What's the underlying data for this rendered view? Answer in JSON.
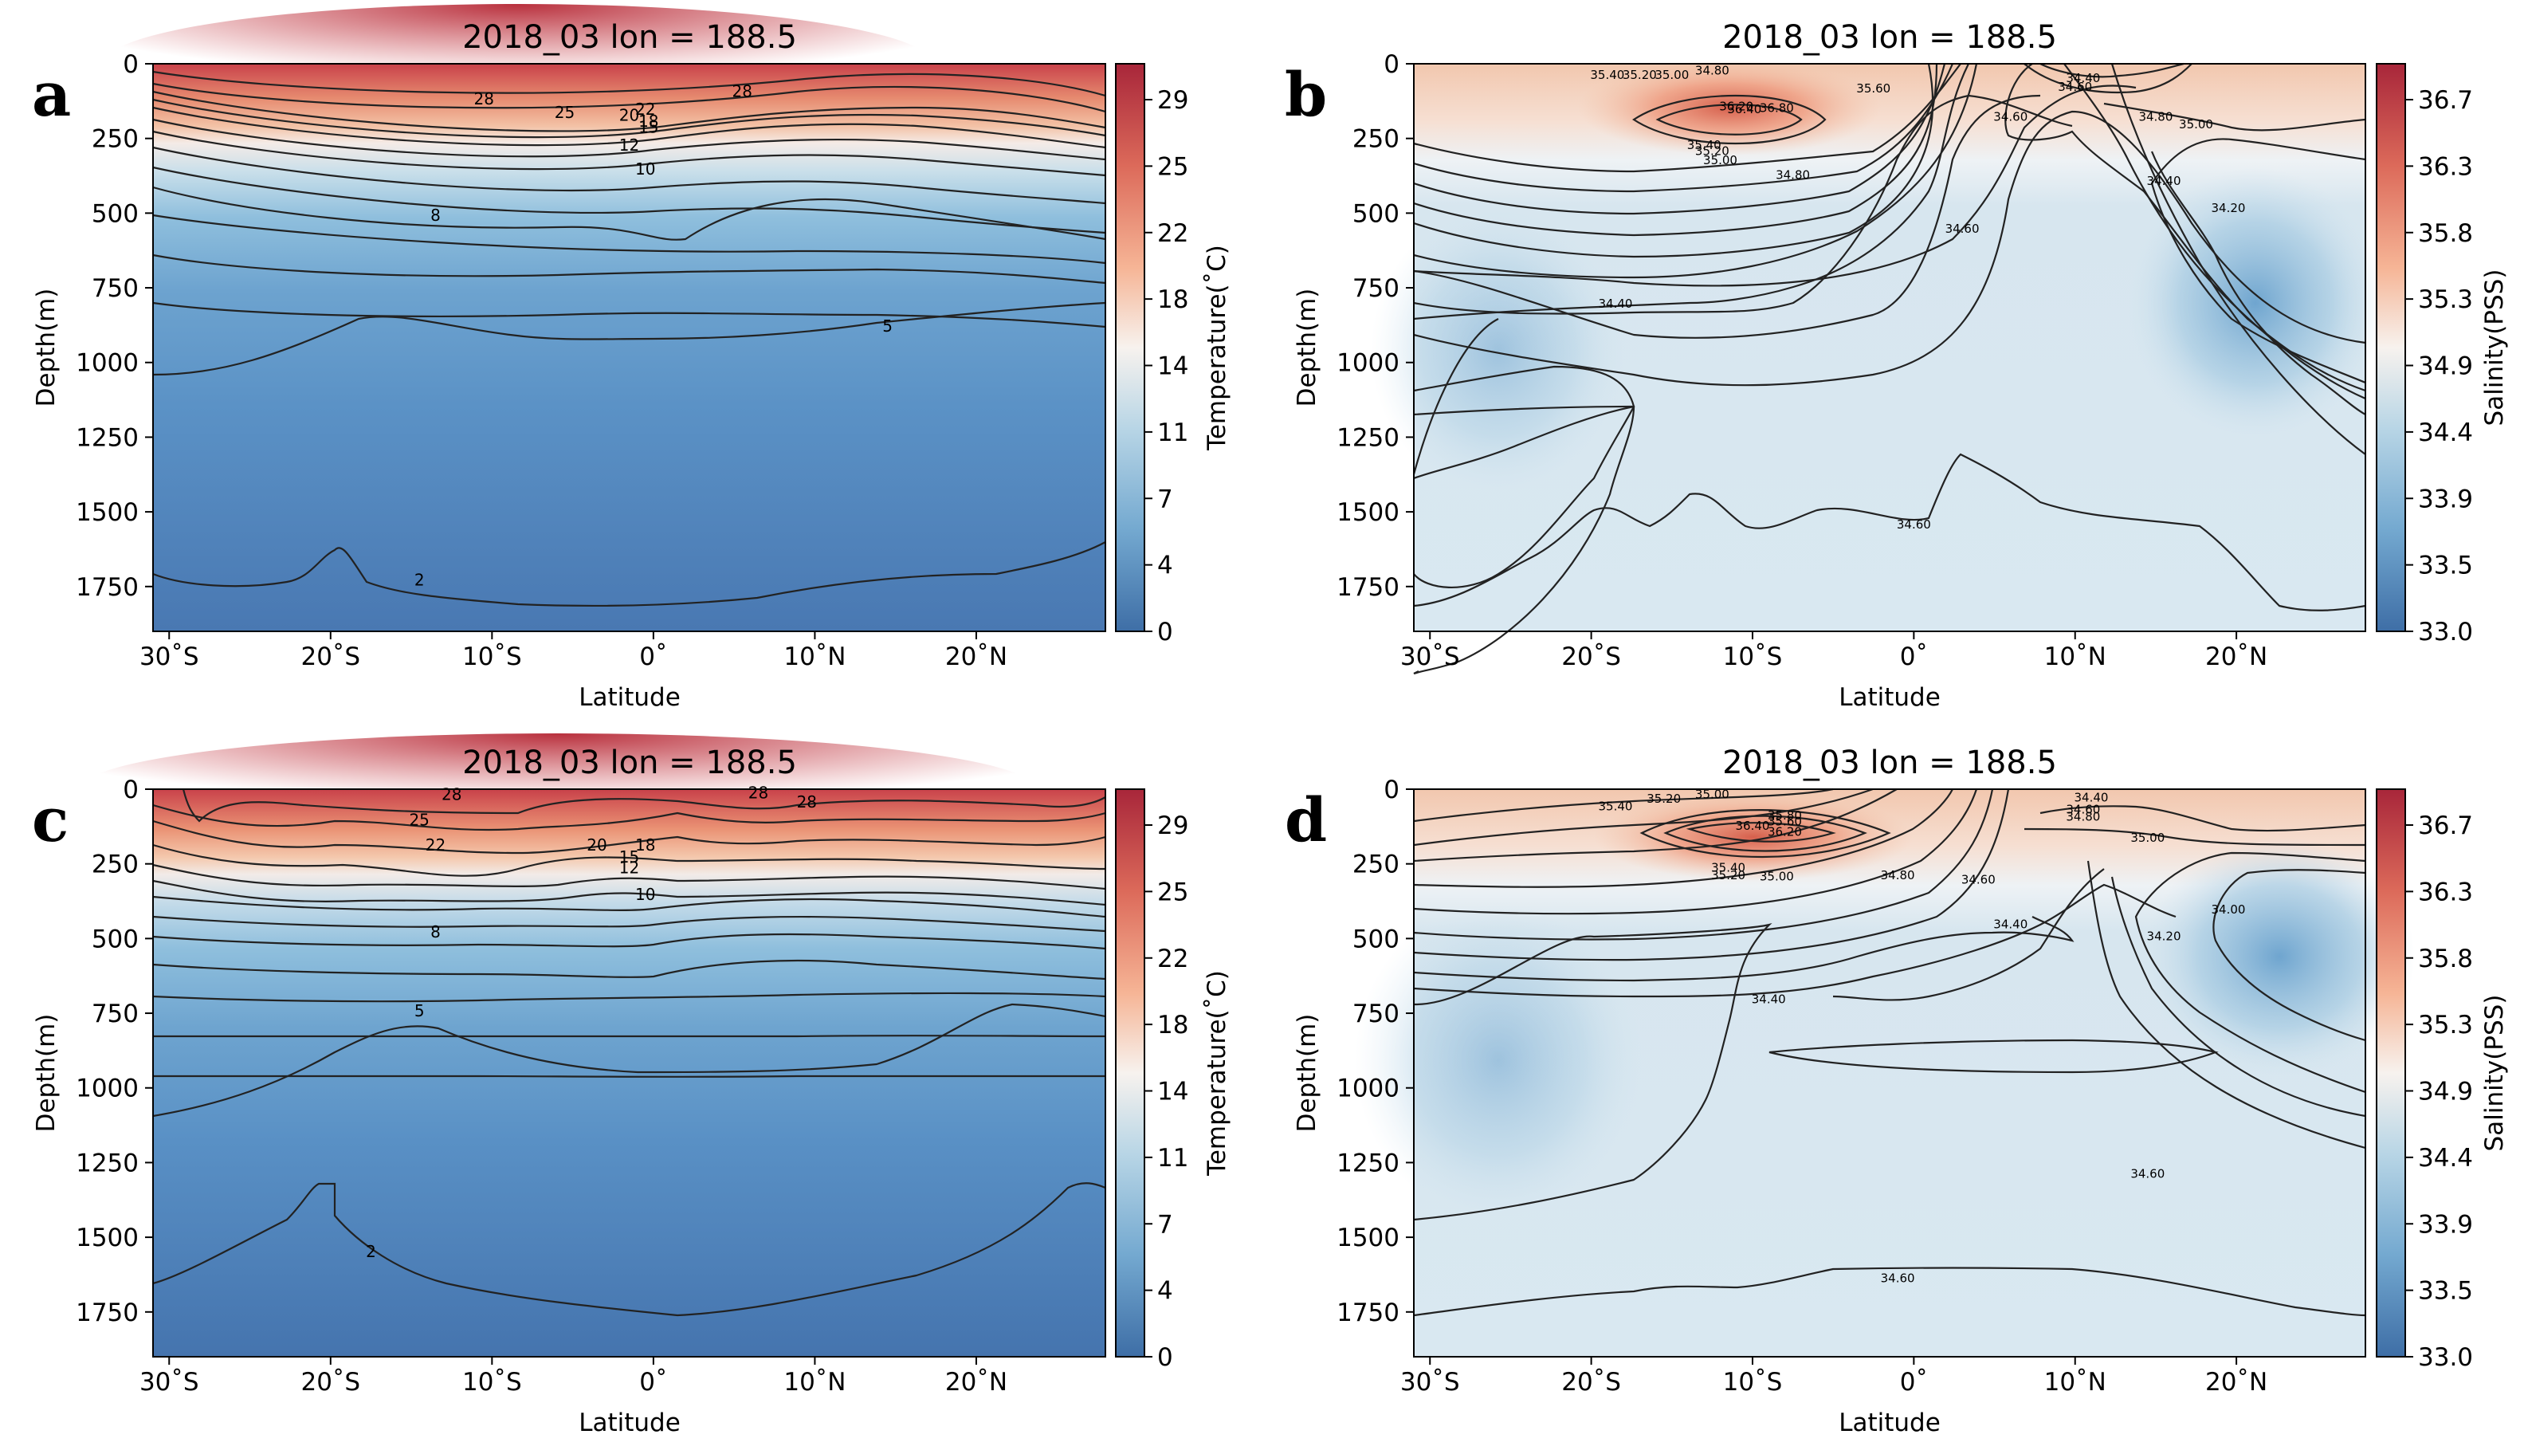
{
  "figure": {
    "panels": [
      "a",
      "b",
      "c",
      "d"
    ]
  },
  "colors": {
    "warm_max": "#b2182b",
    "warm": "#ef8a62",
    "neutral": "#f7f7f7",
    "cool": "#67a9cf",
    "cool_max": "#3d6ea8",
    "contour": "#222222"
  },
  "chart_data": [
    {
      "panel": "a",
      "type": "contour",
      "title": "2018_03 lon = 188.5",
      "xlabel": "Latitude",
      "ylabel": "Depth(m)",
      "colorbar_label": "Temperature(˚C)",
      "x_ticks": [
        "30˚S",
        "20˚S",
        "10˚S",
        "0˚",
        "10˚N",
        "20˚N"
      ],
      "y_ticks": [
        "0",
        "250",
        "500",
        "750",
        "1000",
        "1250",
        "1500",
        "1750"
      ],
      "colorbar_ticks": [
        "29",
        "25",
        "22",
        "18",
        "14",
        "11",
        "7",
        "4",
        "0"
      ],
      "xlim": [
        -31,
        28
      ],
      "ylim": [
        1900,
        0
      ],
      "contour_labels": [
        {
          "text": "28",
          "lat": -10.5,
          "depth": 120
        },
        {
          "text": "28",
          "lat": 5.5,
          "depth": 95
        },
        {
          "text": "25",
          "lat": -5.5,
          "depth": 165
        },
        {
          "text": "20",
          "lat": -1.5,
          "depth": 175
        },
        {
          "text": "22",
          "lat": -0.5,
          "depth": 155
        },
        {
          "text": "18",
          "lat": -0.3,
          "depth": 195
        },
        {
          "text": "15",
          "lat": -0.3,
          "depth": 215
        },
        {
          "text": "12",
          "lat": -1.5,
          "depth": 275
        },
        {
          "text": "10",
          "lat": -0.5,
          "depth": 355
        },
        {
          "text": "8",
          "lat": -13.5,
          "depth": 510
        },
        {
          "text": "5",
          "lat": 14.5,
          "depth": 880
        },
        {
          "text": "2",
          "lat": -14.5,
          "depth": 1730
        }
      ]
    },
    {
      "panel": "b",
      "type": "contour",
      "title": "2018_03 lon = 188.5",
      "xlabel": "Latitude",
      "ylabel": "Depth(m)",
      "colorbar_label": "Salinity(PSS)",
      "x_ticks": [
        "30˚S",
        "20˚S",
        "10˚S",
        "0˚",
        "10˚N",
        "20˚N"
      ],
      "y_ticks": [
        "0",
        "250",
        "500",
        "750",
        "1000",
        "1250",
        "1500",
        "1750"
      ],
      "colorbar_ticks": [
        "36.7",
        "36.3",
        "35.8",
        "35.3",
        "34.9",
        "34.4",
        "33.9",
        "33.5",
        "33.0"
      ],
      "xlim": [
        -31,
        28
      ],
      "ylim": [
        1900,
        0
      ],
      "contour_labels": [
        {
          "text": "35.40",
          "lat": -19,
          "depth": 35
        },
        {
          "text": "35.20",
          "lat": -17,
          "depth": 35
        },
        {
          "text": "35.00",
          "lat": -15,
          "depth": 35
        },
        {
          "text": "34.80",
          "lat": -12.5,
          "depth": 20
        },
        {
          "text": "35.60",
          "lat": -2.5,
          "depth": 80
        },
        {
          "text": "36.20",
          "lat": -11,
          "depth": 140
        },
        {
          "text": "36.40",
          "lat": -10.5,
          "depth": 150
        },
        {
          "text": "36.80",
          "lat": -8.5,
          "depth": 145
        },
        {
          "text": "35.40",
          "lat": -13,
          "depth": 270
        },
        {
          "text": "35.20",
          "lat": -12.5,
          "depth": 290
        },
        {
          "text": "35.00",
          "lat": -12,
          "depth": 320
        },
        {
          "text": "34.80",
          "lat": -7.5,
          "depth": 370
        },
        {
          "text": "34.40",
          "lat": 10.5,
          "depth": 45
        },
        {
          "text": "34.60",
          "lat": 10,
          "depth": 75
        },
        {
          "text": "34.60",
          "lat": 6,
          "depth": 175
        },
        {
          "text": "34.80",
          "lat": 15,
          "depth": 175
        },
        {
          "text": "35.00",
          "lat": 17.5,
          "depth": 200
        },
        {
          "text": "34.40",
          "lat": 15.5,
          "depth": 390
        },
        {
          "text": "34.20",
          "lat": 19.5,
          "depth": 480
        },
        {
          "text": "34.60",
          "lat": 3,
          "depth": 550
        },
        {
          "text": "34.40",
          "lat": -18.5,
          "depth": 800
        },
        {
          "text": "34.60",
          "lat": 0,
          "depth": 1540
        }
      ]
    },
    {
      "panel": "c",
      "type": "contour",
      "title": "2018_03 lon = 188.5",
      "xlabel": "Latitude",
      "ylabel": "Depth(m)",
      "colorbar_label": "Temperature(˚C)",
      "x_ticks": [
        "30˚S",
        "20˚S",
        "10˚S",
        "0˚",
        "10˚N",
        "20˚N"
      ],
      "y_ticks": [
        "0",
        "250",
        "500",
        "750",
        "1000",
        "1250",
        "1500",
        "1750"
      ],
      "colorbar_ticks": [
        "29",
        "25",
        "22",
        "18",
        "14",
        "11",
        "7",
        "4",
        "0"
      ],
      "xlim": [
        -31,
        28
      ],
      "ylim": [
        1900,
        0
      ],
      "contour_labels": [
        {
          "text": "28",
          "lat": -12.5,
          "depth": 20
        },
        {
          "text": "28",
          "lat": 6.5,
          "depth": 15
        },
        {
          "text": "28",
          "lat": 9.5,
          "depth": 45
        },
        {
          "text": "25",
          "lat": -14.5,
          "depth": 105
        },
        {
          "text": "22",
          "lat": -13.5,
          "depth": 190
        },
        {
          "text": "20",
          "lat": -3.5,
          "depth": 190
        },
        {
          "text": "18",
          "lat": -0.5,
          "depth": 190
        },
        {
          "text": "15",
          "lat": -1.5,
          "depth": 230
        },
        {
          "text": "12",
          "lat": -1.5,
          "depth": 265
        },
        {
          "text": "10",
          "lat": -0.5,
          "depth": 355
        },
        {
          "text": "8",
          "lat": -13.5,
          "depth": 480
        },
        {
          "text": "5",
          "lat": -14.5,
          "depth": 745
        },
        {
          "text": "2",
          "lat": -17.5,
          "depth": 1550
        }
      ]
    },
    {
      "panel": "d",
      "type": "contour",
      "title": "2018_03 lon = 188.5",
      "xlabel": "Latitude",
      "ylabel": "Depth(m)",
      "colorbar_label": "Salinity(PSS)",
      "x_ticks": [
        "30˚S",
        "20˚S",
        "10˚S",
        "0˚",
        "10˚N",
        "20˚N"
      ],
      "y_ticks": [
        "0",
        "250",
        "500",
        "750",
        "1000",
        "1250",
        "1500",
        "1750"
      ],
      "colorbar_ticks": [
        "36.7",
        "36.3",
        "35.8",
        "35.3",
        "34.9",
        "34.4",
        "33.9",
        "33.5",
        "33.0"
      ],
      "xlim": [
        -31,
        28
      ],
      "ylim": [
        1900,
        0
      ],
      "contour_labels": [
        {
          "text": "35.40",
          "lat": -18.5,
          "depth": 55
        },
        {
          "text": "35.20",
          "lat": -15.5,
          "depth": 30
        },
        {
          "text": "35.00",
          "lat": -12.5,
          "depth": 15
        },
        {
          "text": "36.40",
          "lat": -10,
          "depth": 120
        },
        {
          "text": "36.20",
          "lat": -8,
          "depth": 140
        },
        {
          "text": "35.80",
          "lat": -8,
          "depth": 85
        },
        {
          "text": "35.60",
          "lat": -8,
          "depth": 105
        },
        {
          "text": "35.40",
          "lat": -11.5,
          "depth": 260
        },
        {
          "text": "35.20",
          "lat": -11.5,
          "depth": 285
        },
        {
          "text": "35.00",
          "lat": -8.5,
          "depth": 290
        },
        {
          "text": "34.80",
          "lat": -1,
          "depth": 285
        },
        {
          "text": "34.60",
          "lat": 4,
          "depth": 300
        },
        {
          "text": "34.40",
          "lat": 11,
          "depth": 25
        },
        {
          "text": "34.60",
          "lat": 10.5,
          "depth": 65
        },
        {
          "text": "34.80",
          "lat": 10.5,
          "depth": 90
        },
        {
          "text": "35.00",
          "lat": 14.5,
          "depth": 160
        },
        {
          "text": "34.40",
          "lat": 6,
          "depth": 450
        },
        {
          "text": "34.20",
          "lat": 15.5,
          "depth": 490
        },
        {
          "text": "34.00",
          "lat": 19.5,
          "depth": 400
        },
        {
          "text": "34.40",
          "lat": -9,
          "depth": 700
        },
        {
          "text": "34.60",
          "lat": 14.5,
          "depth": 1285
        },
        {
          "text": "34.60",
          "lat": -1,
          "depth": 1635
        }
      ]
    }
  ]
}
